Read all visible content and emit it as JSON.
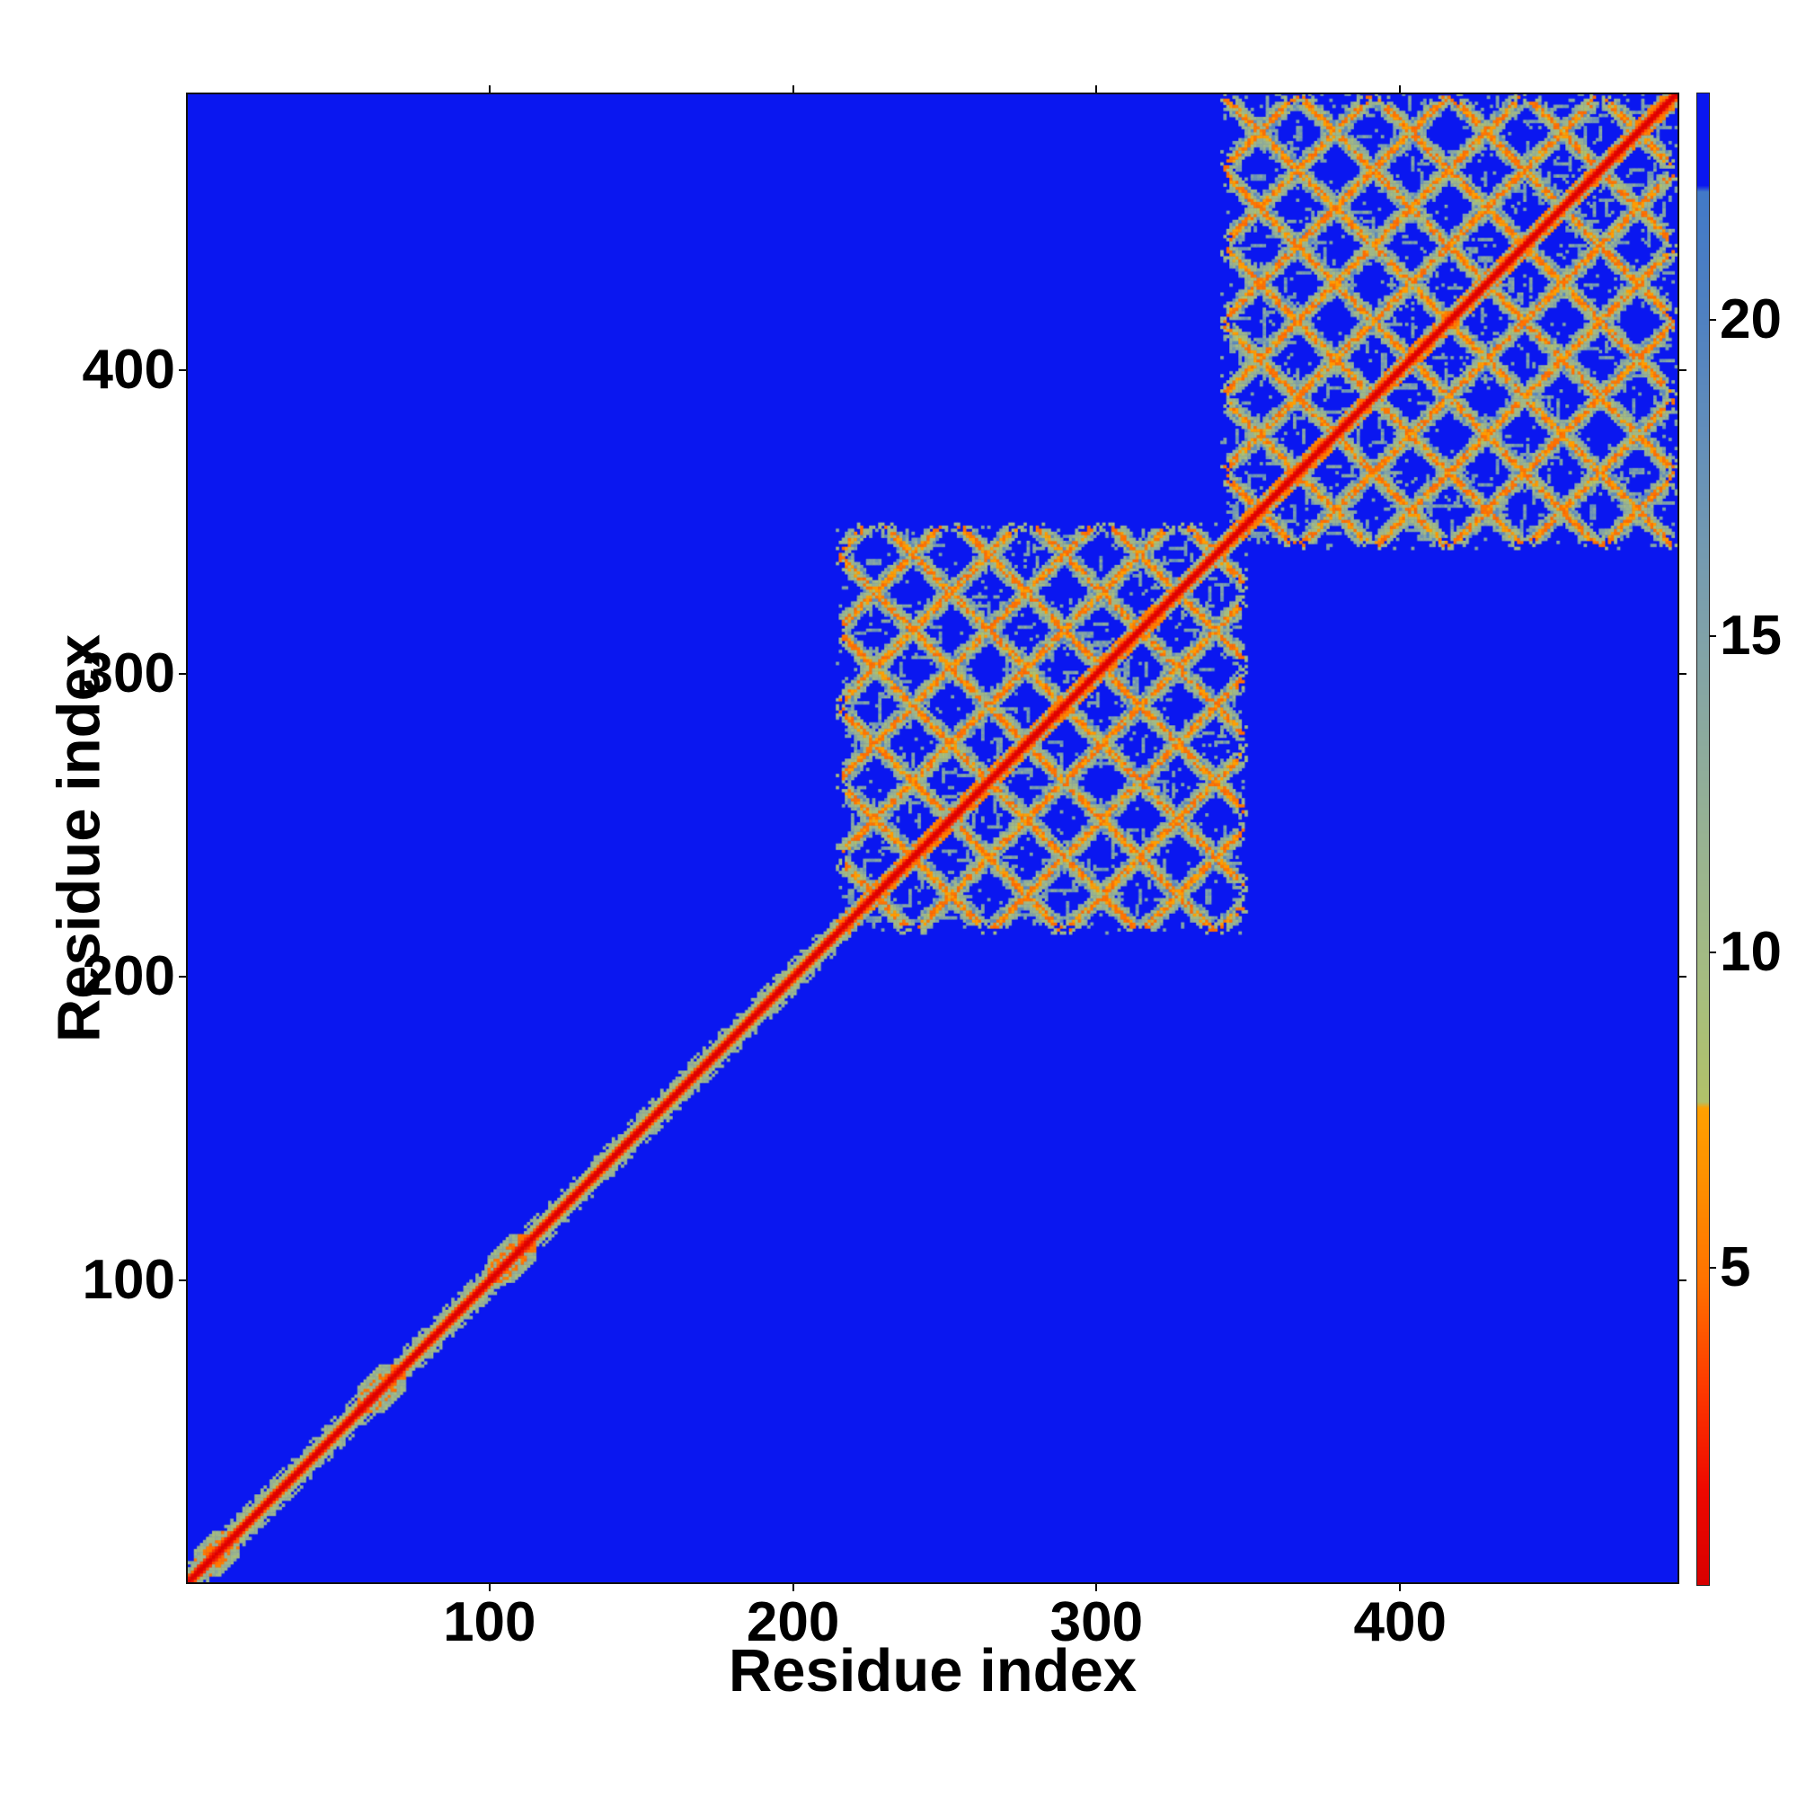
{
  "figure": {
    "xlabel": "Residue index",
    "ylabel": "Residue index"
  },
  "chart_data": {
    "type": "heatmap",
    "title": "",
    "xlabel": "Residue index",
    "ylabel": "Residue index",
    "x_ticks": [
      100,
      200,
      300,
      400
    ],
    "y_ticks": [
      100,
      200,
      300,
      400
    ],
    "x_range": [
      1,
      492
    ],
    "y_range": [
      1,
      492
    ],
    "n_residues": 492,
    "grid": false,
    "legend": "none",
    "colorbar": {
      "orientation": "vertical",
      "position": "right",
      "ticks": [
        5,
        10,
        15,
        20
      ],
      "vmin": 0,
      "vmax": 23.6
    },
    "background_value_color": "#0a17f0",
    "colormap_stops": [
      [
        0.0,
        "#d80000"
      ],
      [
        1.5,
        "#ee0800"
      ],
      [
        3.2,
        "#fe3c00"
      ],
      [
        4.8,
        "#ff7200"
      ],
      [
        6.4,
        "#fe9000"
      ],
      [
        7.55,
        "#ffa000"
      ],
      [
        7.65,
        "#b1c169"
      ],
      [
        9.5,
        "#a6bd80"
      ],
      [
        12.0,
        "#96b194"
      ],
      [
        15.0,
        "#80a2a9"
      ],
      [
        18.0,
        "#6590ba"
      ],
      [
        20.0,
        "#5081c0"
      ],
      [
        22.05,
        "#4279c8"
      ],
      [
        22.15,
        "#0a17f0"
      ],
      [
        23.6,
        "#0a17f0"
      ]
    ],
    "diagonal": {
      "core_value": 0.2,
      "description": "Thin red self-distance diagonal (~7 residues wide: red core, orange fringe, sage edge) running corner to corner",
      "blobs": [
        [
          2,
          16
        ],
        [
          56,
          71
        ],
        [
          99,
          114
        ]
      ],
      "blobs_description": "Short segments with locally widened orange contact clusters on the diagonal"
    },
    "domains": [
      {
        "start": 214,
        "end": 349,
        "lattice_period": 25,
        "description": "Folded domain block: woven X-lattice of sage-green contacts with orange anti-diagonal streaks and blue diamond holes"
      },
      {
        "start": 341,
        "end": 491,
        "lattice_period": 25,
        "description": "Second larger folded domain block touching top-right corner, denser with gray-blue streaky bleed"
      }
    ],
    "off_block_regions": "Pure blue (distances beyond color scale) everywhere outside diagonal band and the two domain blocks"
  }
}
